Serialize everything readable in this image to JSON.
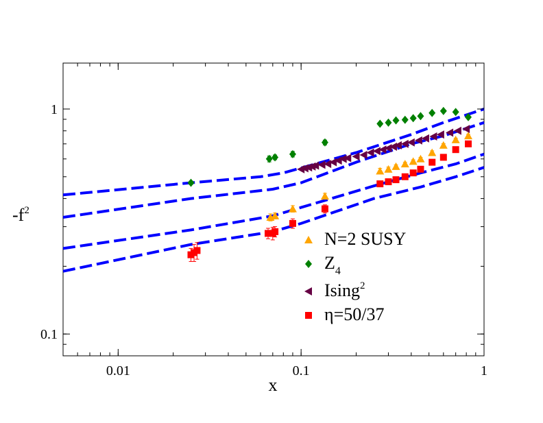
{
  "chart_data": {
    "type": "scatter",
    "title": "",
    "xlabel": "x",
    "ylabel_main": "-f",
    "ylabel_sup": "2",
    "xscale": "log",
    "yscale": "log",
    "xlim": [
      0.005,
      1
    ],
    "ylim": [
      0.08,
      1.6
    ],
    "x_ticks": [
      {
        "value": 0.01,
        "label": "0.01"
      },
      {
        "value": 0.1,
        "label": "0.1"
      },
      {
        "value": 1,
        "label": "1"
      }
    ],
    "y_ticks": [
      {
        "value": 0.1,
        "label": "0.1"
      },
      {
        "value": 1,
        "label": "1"
      }
    ],
    "legend_position": "lower-right",
    "series": [
      {
        "name": "N=2 SUSY",
        "label_main": "N=2 SUSY",
        "label_sub": "",
        "label_sup": "",
        "marker": "triangle-up",
        "color": "#ffa500",
        "points": [
          [
            0.068,
            0.33
          ],
          [
            0.072,
            0.335
          ],
          [
            0.09,
            0.36
          ],
          [
            0.135,
            0.41
          ],
          [
            0.27,
            0.53
          ],
          [
            0.3,
            0.54
          ],
          [
            0.33,
            0.555
          ],
          [
            0.37,
            0.57
          ],
          [
            0.41,
            0.585
          ],
          [
            0.45,
            0.6
          ],
          [
            0.52,
            0.64
          ],
          [
            0.6,
            0.69
          ],
          [
            0.7,
            0.73
          ],
          [
            0.82,
            0.76
          ]
        ],
        "errors": [
          0.012,
          0.01,
          0.012,
          0.012,
          0.015,
          0.012,
          0.01,
          0.01,
          0.01,
          0.01,
          0.012,
          0.012,
          0.012,
          0.012
        ]
      },
      {
        "name": "Z4",
        "label_main": "Z",
        "label_sub": "4",
        "label_sup": "",
        "marker": "diamond",
        "color": "#008000",
        "points": [
          [
            0.025,
            0.47
          ],
          [
            0.067,
            0.6
          ],
          [
            0.072,
            0.61
          ],
          [
            0.09,
            0.63
          ],
          [
            0.135,
            0.71
          ],
          [
            0.27,
            0.86
          ],
          [
            0.3,
            0.87
          ],
          [
            0.33,
            0.89
          ],
          [
            0.37,
            0.895
          ],
          [
            0.41,
            0.91
          ],
          [
            0.45,
            0.93
          ],
          [
            0.52,
            0.96
          ],
          [
            0.6,
            0.98
          ],
          [
            0.7,
            0.97
          ],
          [
            0.82,
            0.92
          ]
        ],
        "errors": [
          0.008,
          0.018,
          0.015,
          0.018,
          0.018,
          0.012,
          0.012,
          0.012,
          0.012,
          0.01,
          0.01,
          0.01,
          0.01,
          0.01,
          0.01
        ]
      },
      {
        "name": "Ising2",
        "label_main": "Ising",
        "label_sub": "",
        "label_sup": "2",
        "marker": "triangle-left",
        "color": "#660044",
        "points": [
          [
            0.1,
            0.54
          ],
          [
            0.105,
            0.545
          ],
          [
            0.11,
            0.55
          ],
          [
            0.115,
            0.555
          ],
          [
            0.12,
            0.56
          ],
          [
            0.13,
            0.565
          ],
          [
            0.14,
            0.57
          ],
          [
            0.15,
            0.58
          ],
          [
            0.16,
            0.59
          ],
          [
            0.17,
            0.6
          ],
          [
            0.18,
            0.605
          ],
          [
            0.2,
            0.615
          ],
          [
            0.22,
            0.625
          ],
          [
            0.24,
            0.64
          ],
          [
            0.26,
            0.65
          ],
          [
            0.28,
            0.66
          ],
          [
            0.3,
            0.67
          ],
          [
            0.32,
            0.68
          ],
          [
            0.34,
            0.69
          ],
          [
            0.37,
            0.7
          ],
          [
            0.4,
            0.71
          ],
          [
            0.44,
            0.725
          ],
          [
            0.48,
            0.74
          ],
          [
            0.53,
            0.755
          ],
          [
            0.58,
            0.77
          ],
          [
            0.65,
            0.785
          ],
          [
            0.72,
            0.8
          ],
          [
            0.8,
            0.815
          ]
        ],
        "errors": []
      },
      {
        "name": "η=50/37",
        "label_main": "η=50/37",
        "label_sub": "",
        "label_sup": "",
        "marker": "square",
        "color": "#ff0000",
        "points": [
          [
            0.025,
            0.225
          ],
          [
            0.026,
            0.23
          ],
          [
            0.027,
            0.235
          ],
          [
            0.066,
            0.28
          ],
          [
            0.07,
            0.28
          ],
          [
            0.072,
            0.285
          ],
          [
            0.09,
            0.31
          ],
          [
            0.135,
            0.36
          ],
          [
            0.27,
            0.465
          ],
          [
            0.3,
            0.475
          ],
          [
            0.33,
            0.485
          ],
          [
            0.37,
            0.5
          ],
          [
            0.41,
            0.52
          ],
          [
            0.45,
            0.54
          ],
          [
            0.52,
            0.58
          ],
          [
            0.6,
            0.61
          ],
          [
            0.7,
            0.66
          ],
          [
            0.82,
            0.7
          ]
        ],
        "errors": [
          0.015,
          0.02,
          0.02,
          0.015,
          0.018,
          0.015,
          0.015,
          0.015,
          0.012,
          0.012,
          0.012,
          0.012,
          0.012,
          0.01,
          0.012,
          0.01,
          0.01,
          0.01
        ]
      }
    ],
    "fit_lines": [
      {
        "name": "fit-1",
        "color": "#0000ff",
        "points": [
          [
            0.005,
            0.415
          ],
          [
            0.025,
            0.47
          ],
          [
            0.06,
            0.5
          ],
          [
            0.08,
            0.52
          ],
          [
            0.2,
            0.64
          ],
          [
            0.4,
            0.77
          ],
          [
            0.6,
            0.87
          ],
          [
            1.0,
            1.0
          ]
        ]
      },
      {
        "name": "fit-2",
        "color": "#0000ff",
        "points": [
          [
            0.005,
            0.33
          ],
          [
            0.025,
            0.4
          ],
          [
            0.07,
            0.44
          ],
          [
            0.1,
            0.47
          ],
          [
            0.2,
            0.58
          ],
          [
            0.4,
            0.7
          ],
          [
            0.6,
            0.76
          ],
          [
            1.0,
            0.87
          ]
        ]
      },
      {
        "name": "fit-3",
        "color": "#0000ff",
        "points": [
          [
            0.005,
            0.24
          ],
          [
            0.025,
            0.29
          ],
          [
            0.07,
            0.335
          ],
          [
            0.1,
            0.365
          ],
          [
            0.25,
            0.455
          ],
          [
            0.45,
            0.52
          ],
          [
            0.7,
            0.57
          ],
          [
            1.0,
            0.63
          ]
        ]
      },
      {
        "name": "fit-4",
        "color": "#0000ff",
        "points": [
          [
            0.005,
            0.19
          ],
          [
            0.025,
            0.25
          ],
          [
            0.07,
            0.285
          ],
          [
            0.1,
            0.31
          ],
          [
            0.25,
            0.4
          ],
          [
            0.45,
            0.45
          ],
          [
            0.7,
            0.5
          ],
          [
            1.0,
            0.55
          ]
        ]
      }
    ]
  }
}
